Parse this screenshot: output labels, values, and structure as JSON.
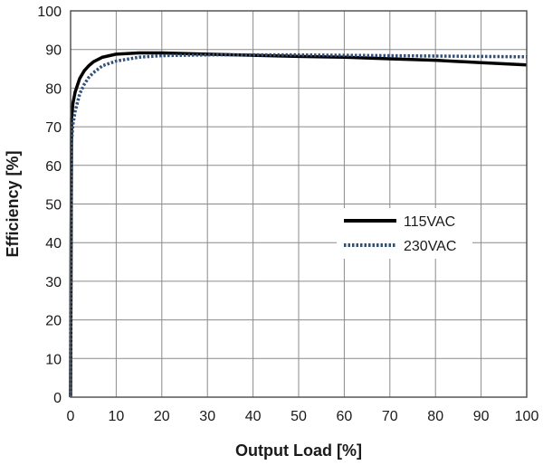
{
  "chart_data": {
    "type": "line",
    "xlabel": "Output Load [%]",
    "ylabel": "Efficiency [%]",
    "xlim": [
      0,
      100
    ],
    "ylim": [
      0,
      100
    ],
    "x_ticks": [
      "0",
      "10",
      "20",
      "30",
      "40",
      "50",
      "60",
      "70",
      "80",
      "90",
      "100"
    ],
    "y_ticks": [
      "0",
      "10",
      "20",
      "30",
      "40",
      "50",
      "60",
      "70",
      "80",
      "90",
      "100"
    ],
    "grid": true,
    "legend_position": "center-right",
    "series": [
      {
        "name": "115VAC",
        "color": "#000000",
        "style": "solid",
        "x": [
          0,
          0.2,
          0.5,
          1,
          2,
          3,
          4,
          5,
          7,
          10,
          15,
          20,
          30,
          40,
          50,
          60,
          70,
          80,
          90,
          100
        ],
        "y": [
          0,
          72,
          76,
          79,
          82.5,
          84.5,
          85.8,
          86.8,
          88,
          88.8,
          89.1,
          89.1,
          88.8,
          88.5,
          88.2,
          88,
          87.6,
          87.2,
          86.6,
          86
        ]
      },
      {
        "name": "230VAC",
        "color": "#33507a",
        "style": "dotted",
        "x": [
          0,
          0.2,
          0.5,
          1,
          2,
          3,
          4,
          5,
          7,
          10,
          15,
          20,
          30,
          40,
          50,
          60,
          70,
          80,
          90,
          100
        ],
        "y": [
          0,
          66,
          70.5,
          74,
          78.5,
          81,
          82.8,
          84,
          85.8,
          87,
          88,
          88.4,
          88.6,
          88.6,
          88.6,
          88.5,
          88.4,
          88.3,
          88.2,
          88.1
        ]
      }
    ]
  }
}
